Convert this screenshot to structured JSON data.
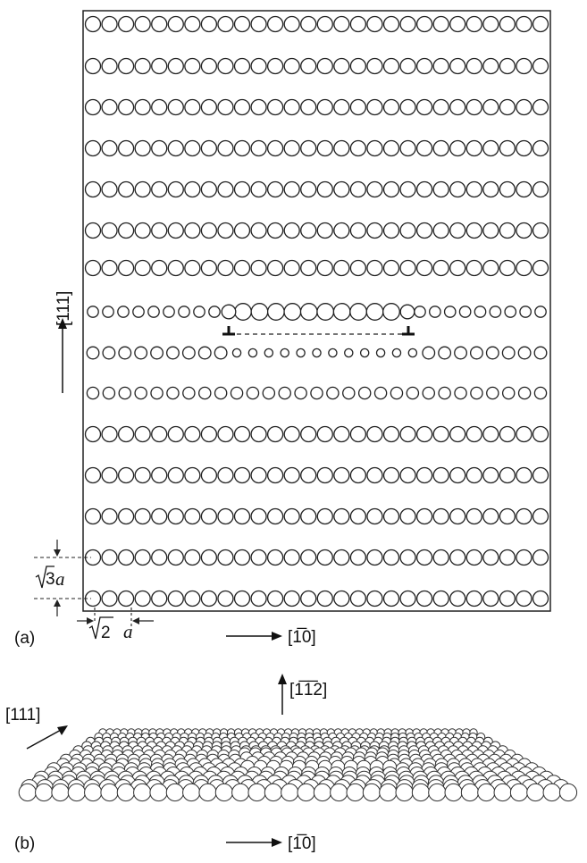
{
  "panel_a": {
    "label": "(a)",
    "vertical_direction": "[111]",
    "horizontal_direction": "[1̅0]",
    "row_spacing_label_root": "3",
    "row_spacing_label_var": "a",
    "atom_spacing_label_root": "2",
    "atom_spacing_label_var": "a",
    "atoms_per_row_normal": 28,
    "atoms_per_row_compressed": 26,
    "atoms_per_row_dilated": 29,
    "rows_total": 15,
    "dislocation_symbol": "⊥"
  },
  "panel_b": {
    "label": "(b)",
    "vertical_direction": "[1̅1̅2]",
    "oblique_direction": "[111]",
    "horizontal_direction": "[1̅0]"
  }
}
